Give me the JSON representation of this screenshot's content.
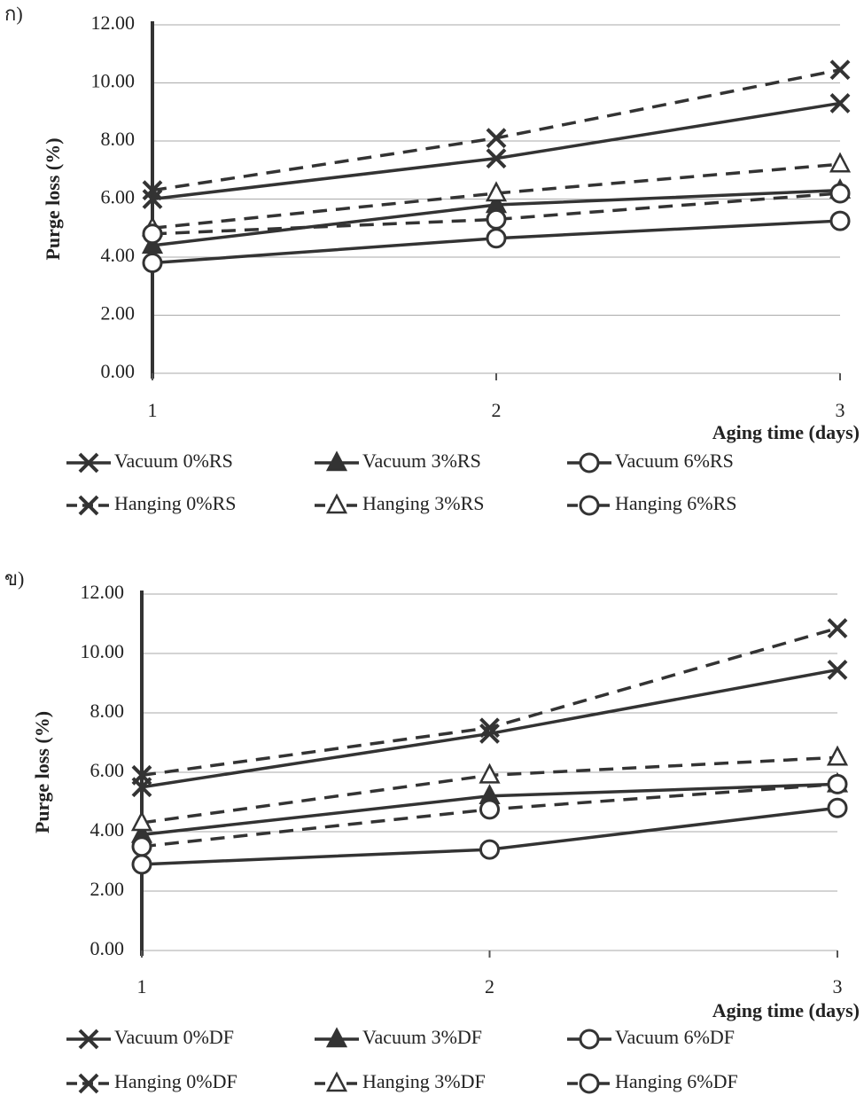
{
  "chart_data": [
    {
      "type": "line",
      "panel_label": "ก)",
      "y_label": "Purge loss (%)",
      "x_label": "Aging time (days)",
      "x": [
        1,
        2,
        3
      ],
      "xlim": [
        1,
        3
      ],
      "xticks": [
        1,
        2,
        3
      ],
      "ylim": [
        0,
        12
      ],
      "yticks": [
        {
          "value": 0,
          "label": "0.00"
        },
        {
          "value": 2,
          "label": "2.00"
        },
        {
          "value": 4,
          "label": "4.00"
        },
        {
          "value": 6,
          "label": "6.00"
        },
        {
          "value": 8,
          "label": "8.00"
        },
        {
          "value": 10,
          "label": "10.00"
        },
        {
          "value": 12,
          "label": "12.00"
        }
      ],
      "grid": true,
      "series": [
        {
          "name": "Vacuum 0%RS",
          "color": "#333333",
          "marker": "x",
          "dashed": false,
          "values": [
            6.0,
            7.4,
            9.3
          ]
        },
        {
          "name": "Vacuum 3%RS",
          "color": "#333333",
          "marker": "triangle",
          "dashed": false,
          "values": [
            4.4,
            5.8,
            6.3
          ]
        },
        {
          "name": "Vacuum 6%RS",
          "color": "#333333",
          "marker": "circle",
          "dashed": false,
          "values": [
            3.8,
            4.65,
            5.25
          ]
        },
        {
          "name": "Hanging 0%RS",
          "color": "#333333",
          "marker": "x",
          "dashed": true,
          "values": [
            6.3,
            8.1,
            10.45
          ]
        },
        {
          "name": "Hanging 3%RS",
          "color": "#333333",
          "marker": "triangle",
          "dashed": true,
          "values": [
            5.0,
            6.2,
            7.2
          ]
        },
        {
          "name": "Hanging 6%RS",
          "color": "#333333",
          "marker": "circle",
          "dashed": true,
          "values": [
            4.8,
            5.3,
            6.2
          ]
        }
      ]
    },
    {
      "type": "line",
      "panel_label": "ข)",
      "y_label": "Purge loss (%)",
      "x_label": "Aging time (days)",
      "x": [
        1,
        2,
        3
      ],
      "xlim": [
        1,
        3
      ],
      "xticks": [
        1,
        2,
        3
      ],
      "ylim": [
        0,
        12
      ],
      "yticks": [
        {
          "value": 0,
          "label": "0.00"
        },
        {
          "value": 2,
          "label": "2.00"
        },
        {
          "value": 4,
          "label": "4.00"
        },
        {
          "value": 6,
          "label": "6.00"
        },
        {
          "value": 8,
          "label": "8.00"
        },
        {
          "value": 10,
          "label": "10.00"
        },
        {
          "value": 12,
          "label": "12.00"
        }
      ],
      "grid": true,
      "series": [
        {
          "name": "Vacuum 0%DF",
          "color": "#333333",
          "marker": "x",
          "dashed": false,
          "values": [
            5.5,
            7.3,
            9.45
          ]
        },
        {
          "name": "Vacuum 3%DF",
          "color": "#333333",
          "marker": "triangle",
          "dashed": false,
          "values": [
            3.9,
            5.2,
            5.6
          ]
        },
        {
          "name": "Vacuum 6%DF",
          "color": "#333333",
          "marker": "circle",
          "dashed": false,
          "values": [
            2.9,
            3.4,
            4.8
          ]
        },
        {
          "name": "Hanging 0%DF",
          "color": "#333333",
          "marker": "x",
          "dashed": true,
          "values": [
            5.9,
            7.5,
            10.85
          ]
        },
        {
          "name": "Hanging 3%DF",
          "color": "#333333",
          "marker": "triangle",
          "dashed": true,
          "values": [
            4.3,
            5.9,
            6.5
          ]
        },
        {
          "name": "Hanging 6%DF",
          "color": "#333333",
          "marker": "circle",
          "dashed": true,
          "values": [
            3.5,
            4.75,
            5.6
          ]
        }
      ]
    }
  ]
}
